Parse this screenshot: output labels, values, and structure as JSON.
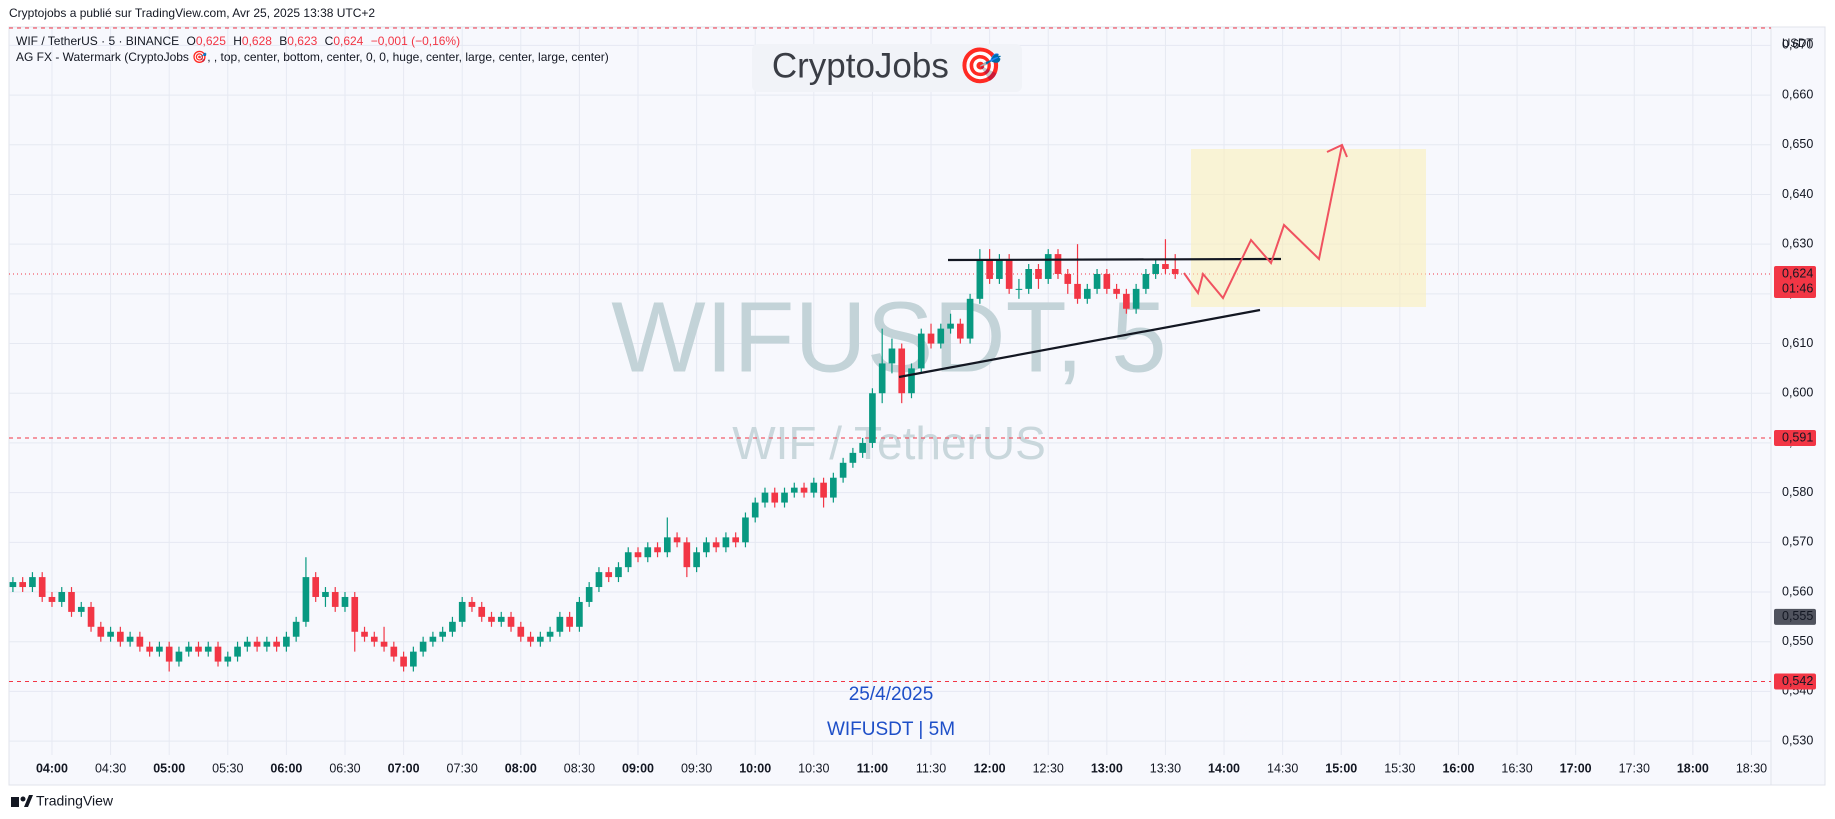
{
  "header": "Cryptojobs a publié sur TradingView.com, Avr 25, 2025 13:38 UTC+2",
  "footer": "TradingView",
  "chart_data": {
    "type": "candlestick",
    "symbol": "WIF / TetherUS · 5 · BINANCE",
    "ohlc_legend": {
      "o": "O",
      "o_value": "0,625",
      "h": "H",
      "h_value": "0,628",
      "l": "B",
      "l_value": "0,623",
      "c": "C",
      "c_value": "0,624",
      "change": "−0,001 (−0,16%)"
    },
    "indicator": "AG FX - Watermark (CryptoJobs 🎯, , top, center, bottom, center, 0, 0, huge, center, large, center, large, center)",
    "watermark": "CryptoJobs 🎯",
    "big_symbol": "WIFUSDT, 5",
    "big_name": "WIF / TetherUS",
    "date_text": "25/4/2025",
    "tf_text": "WIFUSDT | 5M",
    "currency": "USDT",
    "up_color": "#089981",
    "down_color": "#f23645",
    "grid": true,
    "x": [
      "03:40",
      "03:45",
      "03:50",
      "03:55",
      "04:00",
      "04:05",
      "04:10",
      "04:15",
      "04:20",
      "04:25",
      "04:30",
      "04:35",
      "04:40",
      "04:45",
      "04:50",
      "04:55",
      "05:00",
      "05:05",
      "05:10",
      "05:15",
      "05:20",
      "05:25",
      "05:30",
      "05:35",
      "05:40",
      "05:45",
      "05:50",
      "05:55",
      "06:00",
      "06:05",
      "06:10",
      "06:15",
      "06:20",
      "06:25",
      "06:30",
      "06:35",
      "06:40",
      "06:45",
      "06:50",
      "06:55",
      "07:00",
      "07:05",
      "07:10",
      "07:15",
      "07:20",
      "07:25",
      "07:30",
      "07:35",
      "07:40",
      "07:45",
      "07:50",
      "07:55",
      "08:00",
      "08:05",
      "08:10",
      "08:15",
      "08:20",
      "08:25",
      "08:30",
      "08:35",
      "08:40",
      "08:45",
      "08:50",
      "08:55",
      "09:00",
      "09:05",
      "09:10",
      "09:15",
      "09:20",
      "09:25",
      "09:30",
      "09:35",
      "09:40",
      "09:45",
      "09:50",
      "09:55",
      "10:00",
      "10:05",
      "10:10",
      "10:15",
      "10:20",
      "10:25",
      "10:30",
      "10:35",
      "10:40",
      "10:45",
      "10:50",
      "10:55",
      "11:00",
      "11:05",
      "11:10",
      "11:15",
      "11:20",
      "11:25",
      "11:30",
      "11:35",
      "11:40",
      "11:45",
      "11:50",
      "11:55",
      "12:00",
      "12:05",
      "12:10",
      "12:15",
      "12:20",
      "12:25",
      "12:30",
      "12:35",
      "12:40",
      "12:45",
      "12:50",
      "12:55",
      "13:00",
      "13:05",
      "13:10",
      "13:15",
      "13:20",
      "13:25",
      "13:30",
      "13:35"
    ],
    "open": [
      0.561,
      0.562,
      0.561,
      0.563,
      0.559,
      0.558,
      0.56,
      0.556,
      0.557,
      0.553,
      0.551,
      0.552,
      0.55,
      0.551,
      0.549,
      0.548,
      0.549,
      0.546,
      0.548,
      0.549,
      0.548,
      0.549,
      0.546,
      0.547,
      0.549,
      0.55,
      0.549,
      0.55,
      0.549,
      0.551,
      0.554,
      0.563,
      0.559,
      0.56,
      0.557,
      0.559,
      0.552,
      0.551,
      0.55,
      0.549,
      0.547,
      0.545,
      0.548,
      0.55,
      0.551,
      0.552,
      0.554,
      0.558,
      0.557,
      0.555,
      0.554,
      0.555,
      0.553,
      0.551,
      0.55,
      0.551,
      0.552,
      0.555,
      0.553,
      0.558,
      0.561,
      0.564,
      0.563,
      0.565,
      0.568,
      0.567,
      0.569,
      0.568,
      0.571,
      0.57,
      0.565,
      0.568,
      0.57,
      0.569,
      0.571,
      0.57,
      0.575,
      0.578,
      0.58,
      0.578,
      0.58,
      0.581,
      0.58,
      0.582,
      0.579,
      0.583,
      0.586,
      0.588,
      0.59,
      0.6,
      0.606,
      0.609,
      0.6,
      0.605,
      0.612,
      0.61,
      0.613,
      0.614,
      0.611,
      0.619,
      0.627,
      0.623,
      0.627,
      0.621,
      0.621,
      0.625,
      0.623,
      0.628,
      0.624,
      0.622,
      0.619,
      0.621,
      0.624,
      0.621,
      0.62,
      0.617,
      0.621,
      0.624,
      0.626,
      0.625
    ],
    "high": [
      0.563,
      0.563,
      0.564,
      0.564,
      0.56,
      0.561,
      0.561,
      0.558,
      0.558,
      0.554,
      0.553,
      0.553,
      0.552,
      0.552,
      0.55,
      0.55,
      0.55,
      0.549,
      0.55,
      0.55,
      0.55,
      0.55,
      0.548,
      0.55,
      0.551,
      0.551,
      0.551,
      0.551,
      0.552,
      0.555,
      0.567,
      0.564,
      0.561,
      0.561,
      0.56,
      0.56,
      0.553,
      0.552,
      0.553,
      0.55,
      0.548,
      0.549,
      0.551,
      0.552,
      0.553,
      0.555,
      0.559,
      0.559,
      0.558,
      0.556,
      0.556,
      0.556,
      0.554,
      0.552,
      0.552,
      0.553,
      0.556,
      0.556,
      0.559,
      0.562,
      0.565,
      0.565,
      0.566,
      0.569,
      0.569,
      0.57,
      0.57,
      0.575,
      0.572,
      0.571,
      0.569,
      0.571,
      0.571,
      0.572,
      0.572,
      0.576,
      0.579,
      0.581,
      0.581,
      0.581,
      0.582,
      0.582,
      0.583,
      0.583,
      0.584,
      0.587,
      0.589,
      0.591,
      0.601,
      0.613,
      0.611,
      0.61,
      0.606,
      0.613,
      0.614,
      0.614,
      0.616,
      0.615,
      0.62,
      0.629,
      0.629,
      0.628,
      0.628,
      0.623,
      0.626,
      0.626,
      0.629,
      0.629,
      0.625,
      0.63,
      0.622,
      0.625,
      0.625,
      0.622,
      0.621,
      0.622,
      0.625,
      0.627,
      0.631,
      0.628
    ],
    "low": [
      0.56,
      0.56,
      0.56,
      0.558,
      0.557,
      0.557,
      0.555,
      0.555,
      0.552,
      0.55,
      0.55,
      0.549,
      0.549,
      0.548,
      0.547,
      0.547,
      0.544,
      0.545,
      0.547,
      0.547,
      0.547,
      0.545,
      0.545,
      0.546,
      0.548,
      0.548,
      0.548,
      0.548,
      0.548,
      0.55,
      0.553,
      0.558,
      0.557,
      0.556,
      0.556,
      0.548,
      0.55,
      0.549,
      0.548,
      0.546,
      0.544,
      0.544,
      0.547,
      0.549,
      0.55,
      0.551,
      0.553,
      0.556,
      0.554,
      0.553,
      0.553,
      0.552,
      0.55,
      0.549,
      0.549,
      0.55,
      0.551,
      0.552,
      0.552,
      0.557,
      0.56,
      0.562,
      0.562,
      0.564,
      0.566,
      0.566,
      0.567,
      0.567,
      0.569,
      0.563,
      0.564,
      0.567,
      0.568,
      0.568,
      0.569,
      0.569,
      0.574,
      0.577,
      0.577,
      0.577,
      0.579,
      0.579,
      0.579,
      0.577,
      0.578,
      0.582,
      0.585,
      0.587,
      0.589,
      0.598,
      0.604,
      0.598,
      0.599,
      0.604,
      0.609,
      0.609,
      0.612,
      0.61,
      0.61,
      0.618,
      0.622,
      0.622,
      0.62,
      0.619,
      0.62,
      0.621,
      0.622,
      0.623,
      0.62,
      0.618,
      0.618,
      0.62,
      0.62,
      0.619,
      0.616,
      0.616,
      0.62,
      0.623,
      0.624,
      0.623
    ],
    "close": [
      0.562,
      0.561,
      0.563,
      0.559,
      0.558,
      0.56,
      0.556,
      0.557,
      0.553,
      0.551,
      0.552,
      0.55,
      0.551,
      0.549,
      0.548,
      0.549,
      0.546,
      0.548,
      0.549,
      0.548,
      0.549,
      0.546,
      0.547,
      0.549,
      0.55,
      0.549,
      0.55,
      0.549,
      0.551,
      0.554,
      0.563,
      0.559,
      0.56,
      0.557,
      0.559,
      0.552,
      0.551,
      0.55,
      0.549,
      0.547,
      0.545,
      0.548,
      0.55,
      0.551,
      0.552,
      0.554,
      0.558,
      0.557,
      0.555,
      0.554,
      0.555,
      0.553,
      0.551,
      0.55,
      0.551,
      0.552,
      0.555,
      0.553,
      0.558,
      0.561,
      0.564,
      0.563,
      0.565,
      0.568,
      0.567,
      0.569,
      0.568,
      0.571,
      0.57,
      0.565,
      0.568,
      0.57,
      0.569,
      0.571,
      0.57,
      0.575,
      0.578,
      0.58,
      0.578,
      0.58,
      0.581,
      0.58,
      0.582,
      0.579,
      0.583,
      0.586,
      0.588,
      0.59,
      0.6,
      0.606,
      0.609,
      0.6,
      0.605,
      0.612,
      0.61,
      0.613,
      0.614,
      0.611,
      0.619,
      0.627,
      0.623,
      0.627,
      0.621,
      0.621,
      0.625,
      0.623,
      0.628,
      0.624,
      0.622,
      0.619,
      0.621,
      0.624,
      0.621,
      0.62,
      0.617,
      0.621,
      0.624,
      0.626,
      0.625,
      0.624
    ],
    "xlim": [
      "03:38",
      "18:40"
    ],
    "xticks": [
      "04:00",
      "04:30",
      "05:00",
      "05:30",
      "06:00",
      "06:30",
      "07:00",
      "07:30",
      "08:00",
      "08:30",
      "09:00",
      "09:30",
      "10:00",
      "10:30",
      "11:00",
      "11:30",
      "12:00",
      "12:30",
      "13:00",
      "13:30",
      "14:00",
      "14:30",
      "15:00",
      "15:30",
      "16:00",
      "16:30",
      "17:00",
      "17:30",
      "18:00",
      "18:30"
    ],
    "ylim": [
      0.5272,
      0.6737
    ],
    "yticks": [
      {
        "value": 0.53,
        "label": "0,530"
      },
      {
        "value": 0.54,
        "label": "0,540"
      },
      {
        "value": 0.55,
        "label": "0,550"
      },
      {
        "value": 0.56,
        "label": "0,560"
      },
      {
        "value": 0.57,
        "label": "0,570"
      },
      {
        "value": 0.58,
        "label": "0,580"
      },
      {
        "value": 0.59,
        "label": "0,590"
      },
      {
        "value": 0.6,
        "label": "0,600"
      },
      {
        "value": 0.61,
        "label": "0,610"
      },
      {
        "value": 0.62,
        "label": "0,620"
      },
      {
        "value": 0.63,
        "label": "0,630"
      },
      {
        "value": 0.64,
        "label": "0,640"
      },
      {
        "value": 0.65,
        "label": "0,650"
      },
      {
        "value": 0.66,
        "label": "0,660"
      },
      {
        "value": 0.67,
        "label": "0,670"
      }
    ],
    "price_lines": [
      {
        "value": 0.6735
      },
      {
        "value": 0.591,
        "label": "0,591"
      },
      {
        "value": 0.542,
        "label": "0,542"
      }
    ],
    "last_price": {
      "value": 0.624,
      "label": "0,624",
      "countdown": "01:46"
    },
    "prev_price": {
      "value": 0.555,
      "label": "0,555"
    }
  }
}
